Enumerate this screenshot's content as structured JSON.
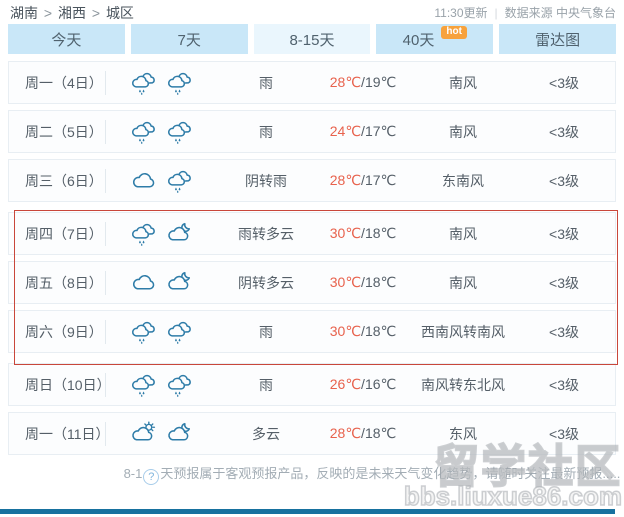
{
  "breadcrumb": {
    "items": [
      "湖南",
      "湘西",
      "城区"
    ],
    "separator": ">"
  },
  "header_meta": {
    "update_time": "11:30更新",
    "separator": "|",
    "source": "数据来源 中央气象台"
  },
  "tabs": [
    {
      "label": "今天",
      "active": false,
      "badge": ""
    },
    {
      "label": "7天",
      "active": false,
      "badge": ""
    },
    {
      "label": "8-15天",
      "active": true,
      "badge": ""
    },
    {
      "label": "40天",
      "active": false,
      "badge": "hot"
    },
    {
      "label": "雷达图",
      "active": false,
      "badge": ""
    }
  ],
  "temp_separator": "/",
  "forecast_rows": [
    {
      "day": "周一（4日）",
      "icons": [
        "rain-cloud-icon",
        "rain-cloud-icon"
      ],
      "weather": "雨",
      "temp_high": "28℃",
      "temp_low": "19℃",
      "wind": "南风",
      "wind_level": "<3级",
      "highlighted": false
    },
    {
      "day": "周二（5日）",
      "icons": [
        "rain-cloud-icon",
        "rain-cloud-icon"
      ],
      "weather": "雨",
      "temp_high": "24℃",
      "temp_low": "17℃",
      "wind": "南风",
      "wind_level": "<3级",
      "highlighted": false
    },
    {
      "day": "周三（6日）",
      "icons": [
        "cloud-icon",
        "rain-cloud-icon"
      ],
      "weather": "阴转雨",
      "temp_high": "28℃",
      "temp_low": "17℃",
      "wind": "东南风",
      "wind_level": "<3级",
      "highlighted": false
    },
    {
      "day": "周四（7日）",
      "icons": [
        "rain-cloud-icon",
        "cloud-moon-icon"
      ],
      "weather": "雨转多云",
      "temp_high": "30℃",
      "temp_low": "18℃",
      "wind": "南风",
      "wind_level": "<3级",
      "highlighted": true
    },
    {
      "day": "周五（8日）",
      "icons": [
        "cloud-icon",
        "cloud-moon-icon"
      ],
      "weather": "阴转多云",
      "temp_high": "30℃",
      "temp_low": "18℃",
      "wind": "南风",
      "wind_level": "<3级",
      "highlighted": true
    },
    {
      "day": "周六（9日）",
      "icons": [
        "rain-cloud-icon",
        "rain-cloud-icon"
      ],
      "weather": "雨",
      "temp_high": "30℃",
      "temp_low": "18℃",
      "wind": "西南风转南风",
      "wind_level": "<3级",
      "highlighted": true
    },
    {
      "day": "周日（10日）",
      "icons": [
        "rain-cloud-icon",
        "rain-cloud-icon"
      ],
      "weather": "雨",
      "temp_high": "26℃",
      "temp_low": "16℃",
      "wind": "南风转东北风",
      "wind_level": "<3级",
      "highlighted": false
    },
    {
      "day": "周一（11日）",
      "icons": [
        "cloud-sun-icon",
        "cloud-moon-icon"
      ],
      "weather": "多云",
      "temp_high": "28℃",
      "temp_low": "18℃",
      "wind": "东风",
      "wind_level": "<3级",
      "highlighted": false
    }
  ],
  "footer": {
    "note_prefix": "8-1",
    "help_glyph": "?",
    "note_suffix": "天预报属于客观预报产品，反映的是未来天气变化趋势，请随时关注最新预报....."
  },
  "watermark": {
    "title": "留学社区",
    "url": "bbs.liuxue86.com"
  },
  "colors": {
    "temp_high": "#e8624d",
    "tab_bg": "#c9e7f8",
    "tab_active_bg": "#eaf6fd",
    "hot_badge": "#f7a23c",
    "highlight_border": "#c9473b",
    "icon_stroke": "#2e7ca8",
    "bottom_bar": "#17719f"
  }
}
